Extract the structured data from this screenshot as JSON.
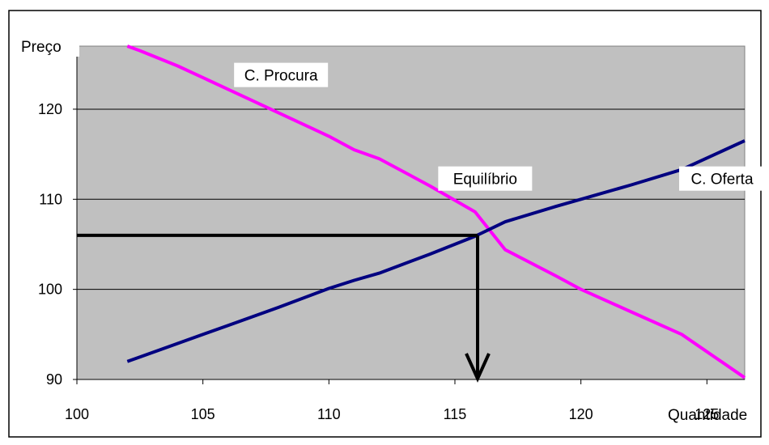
{
  "chart_data": {
    "type": "line",
    "xlabel": "Quantidade",
    "ylabel": "Preço",
    "xlim": [
      100,
      126.5
    ],
    "ylim": [
      90,
      127
    ],
    "xticks": [
      100,
      105,
      110,
      115,
      120,
      125
    ],
    "yticks": [
      90,
      100,
      110,
      120
    ],
    "grid": "horizontal",
    "colors": {
      "plot_bg": "#c0c0c0",
      "procura": "#ff00ff",
      "oferta": "#000080",
      "equilibrium": "#000000"
    },
    "series": [
      {
        "name": "C. Procura",
        "x": [
          102,
          102.5,
          104,
          106,
          108,
          110,
          111,
          112,
          114,
          115.8,
          117,
          119,
          120,
          122,
          124,
          126.5
        ],
        "y": [
          127,
          126.5,
          124.8,
          122.2,
          119.6,
          117,
          115.5,
          114.5,
          111.5,
          108.6,
          104.4,
          101.5,
          100,
          97.5,
          95,
          90.2
        ]
      },
      {
        "name": "C. Oferta",
        "x": [
          102,
          102.5,
          104,
          106,
          108,
          110,
          111,
          112,
          114,
          115.8,
          117,
          119,
          120,
          122,
          124,
          126.5
        ],
        "y": [
          92,
          92.5,
          94,
          96,
          98,
          100.1,
          101,
          101.8,
          103.9,
          105.9,
          107.5,
          109.2,
          110,
          111.6,
          113.3,
          116.5
        ]
      }
    ],
    "equilibrium": {
      "x": 115.9,
      "y": 106,
      "label": "Equilíbrio"
    },
    "annotations": [
      {
        "text": "C. Procura",
        "x": 108.1,
        "y": 123.8
      },
      {
        "text": "Equilíbrio",
        "x": 116.2,
        "y": 112.3
      },
      {
        "text": "C. Oferta",
        "x": 125.6,
        "y": 112.3
      }
    ]
  }
}
